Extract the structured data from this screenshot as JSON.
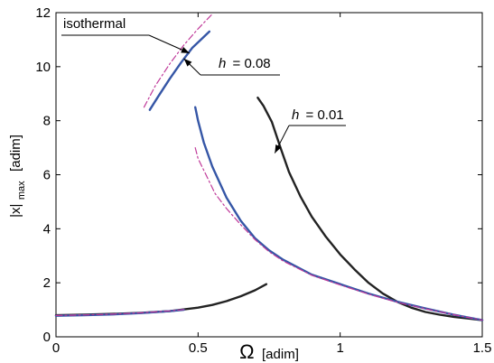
{
  "chart_data": {
    "type": "line",
    "title": "",
    "xlabel": {
      "symbol": "Ω",
      "unit": "[adim]"
    },
    "ylabel": {
      "symbol": "|x|",
      "subscript": "max",
      "unit": "[adim]"
    },
    "xlim": [
      0,
      1.5
    ],
    "ylim": [
      0,
      12
    ],
    "xticks": [
      0,
      0.5,
      1,
      1.5
    ],
    "xtick_labels": [
      "0",
      "0.5",
      "1",
      "1.5"
    ],
    "yticks": [
      0,
      2,
      4,
      6,
      8,
      10,
      12
    ],
    "ytick_labels": [
      "0",
      "2",
      "4",
      "6",
      "8",
      "10",
      "12"
    ],
    "grid": false,
    "legend": null,
    "colors": {
      "h001": "#222222",
      "h008": "#3556a6",
      "isothermal": "#c03a9a"
    },
    "series": [
      {
        "group": "h001",
        "style": "solid",
        "x": [
          0.71,
          0.73,
          0.76,
          0.79,
          0.82,
          0.86,
          0.9,
          0.95,
          1.0,
          1.05,
          1.1,
          1.15,
          1.2,
          1.25,
          1.3,
          1.35,
          1.4,
          1.45,
          1.5
        ],
        "y": [
          8.85,
          8.55,
          7.95,
          7.0,
          6.1,
          5.2,
          4.45,
          3.7,
          3.05,
          2.5,
          2.0,
          1.6,
          1.3,
          1.08,
          0.92,
          0.82,
          0.74,
          0.68,
          0.62
        ]
      },
      {
        "group": "h001",
        "style": "solid",
        "x": [
          0,
          0.1,
          0.2,
          0.3,
          0.4,
          0.5,
          0.55,
          0.6,
          0.65,
          0.7,
          0.74
        ],
        "y": [
          0.8,
          0.82,
          0.85,
          0.89,
          0.95,
          1.08,
          1.18,
          1.32,
          1.5,
          1.72,
          1.95
        ]
      },
      {
        "group": "h008",
        "style": "solid",
        "x": [
          0.33,
          0.36,
          0.4,
          0.44,
          0.48,
          0.51,
          0.54
        ],
        "y": [
          8.4,
          8.9,
          9.55,
          10.15,
          10.7,
          11.0,
          11.3
        ]
      },
      {
        "group": "h008",
        "style": "solid",
        "x": [
          0.49,
          0.5,
          0.52,
          0.55,
          0.6,
          0.65,
          0.7,
          0.75,
          0.8,
          0.9,
          1.0,
          1.1,
          1.2,
          1.3,
          1.4,
          1.5
        ],
        "y": [
          8.5,
          8.0,
          7.2,
          6.3,
          5.15,
          4.3,
          3.65,
          3.2,
          2.85,
          2.3,
          1.95,
          1.6,
          1.3,
          1.05,
          0.82,
          0.62
        ]
      },
      {
        "group": "h008",
        "style": "solid",
        "x": [
          0,
          0.1,
          0.2,
          0.3,
          0.4,
          0.45
        ],
        "y": [
          0.78,
          0.8,
          0.83,
          0.88,
          0.95,
          1.0
        ]
      },
      {
        "group": "isothermal",
        "style": "dashdot",
        "x": [
          0.31,
          0.35,
          0.4,
          0.45,
          0.5,
          0.55
        ],
        "y": [
          8.5,
          9.3,
          10.1,
          10.8,
          11.4,
          11.95
        ]
      },
      {
        "group": "isothermal",
        "style": "dashdot",
        "x": [
          0.49,
          0.5,
          0.53,
          0.56,
          0.6,
          0.65,
          0.7,
          0.75,
          0.8,
          0.9,
          1.0,
          1.1,
          1.2,
          1.3,
          1.4,
          1.5
        ],
        "y": [
          7.0,
          6.6,
          5.95,
          5.3,
          4.75,
          4.15,
          3.6,
          3.15,
          2.8,
          2.28,
          1.92,
          1.58,
          1.28,
          1.04,
          0.82,
          0.62
        ]
      },
      {
        "group": "isothermal",
        "style": "dashdot",
        "x": [
          0,
          0.1,
          0.2,
          0.3,
          0.4,
          0.45
        ],
        "y": [
          0.79,
          0.81,
          0.84,
          0.89,
          0.96,
          1.01
        ]
      }
    ],
    "annotations": [
      {
        "label": "isothermal",
        "arrow_to": [
          0.47,
          10.5
        ]
      },
      {
        "label_var": "h",
        "label_value": "= 0.08",
        "arrow_to": [
          0.45,
          10.3
        ]
      },
      {
        "label_var": "h",
        "label_value": "= 0.01",
        "arrow_to": [
          0.77,
          6.8
        ]
      }
    ]
  }
}
